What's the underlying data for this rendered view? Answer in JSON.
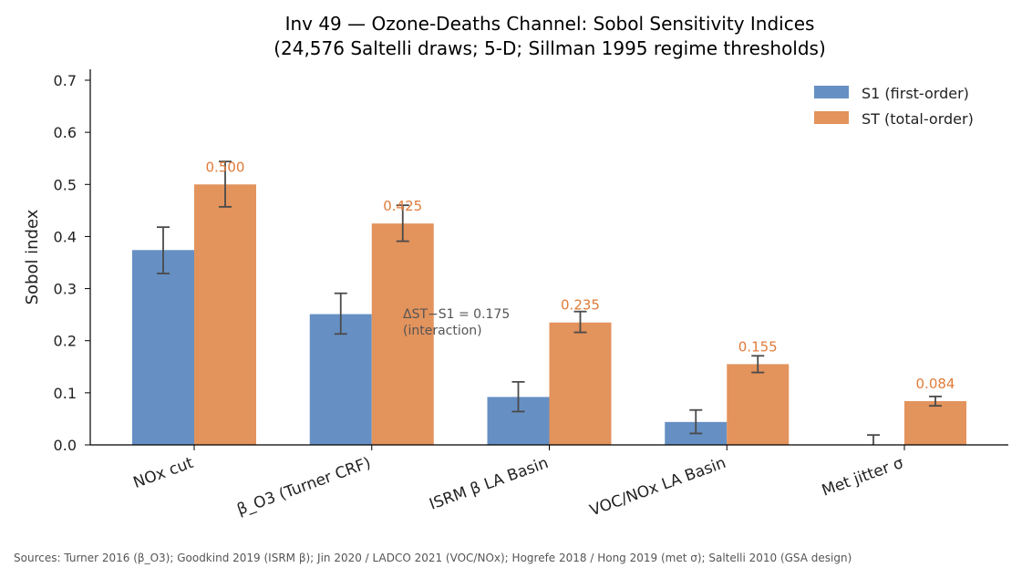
{
  "chart_data": {
    "type": "bar",
    "title_lines": [
      "Inv 49 — Ozone-Deaths Channel: Sobol Sensitivity Indices",
      "(24,576 Saltelli draws; 5-D; Sillman 1995 regime thresholds)"
    ],
    "ylabel": "Sobol index",
    "xlabel": "",
    "ylim": [
      0,
      0.72
    ],
    "yticks": [
      "0.0",
      "0.1",
      "0.2",
      "0.3",
      "0.4",
      "0.5",
      "0.6",
      "0.7"
    ],
    "categories": [
      "NOx cut",
      "β_O3 (Turner CRF)",
      "ISRM β LA Basin",
      "VOC/NOx LA Basin",
      "Met jitter σ"
    ],
    "series": [
      {
        "name": "S1 (first-order)",
        "color": "#6690C4",
        "values": [
          0.374,
          0.251,
          0.092,
          0.044,
          0.0
        ],
        "err_low": [
          0.329,
          0.213,
          0.064,
          0.022,
          0.0
        ],
        "err_high": [
          0.418,
          0.291,
          0.121,
          0.067,
          0.019
        ]
      },
      {
        "name": "ST (total-order)",
        "color": "#E3935C",
        "values": [
          0.5,
          0.425,
          0.235,
          0.155,
          0.084
        ],
        "err_low": [
          0.457,
          0.391,
          0.216,
          0.139,
          0.075
        ],
        "err_high": [
          0.544,
          0.46,
          0.256,
          0.171,
          0.093
        ],
        "labels": [
          "0.500",
          "0.425",
          "0.235",
          "0.155",
          "0.084"
        ]
      }
    ],
    "annotation": {
      "lines": [
        "ΔST−S1 = 0.175",
        "(interaction)"
      ]
    },
    "legend_position": "top-right",
    "grid": false
  },
  "footer": {
    "sources": "Sources: Turner 2016 (β_O3); Goodkind 2019 (ISRM β); Jin 2020 / LADCO 2021 (VOC/NOx); Hogrefe 2018 / Hong 2019 (met σ); Saltelli 2010 (GSA design)"
  }
}
